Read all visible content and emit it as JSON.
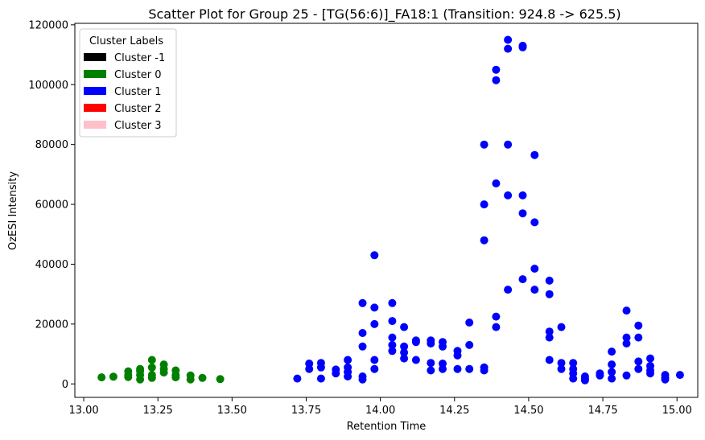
{
  "chart_data": {
    "type": "scatter",
    "title": "Scatter Plot for Group 25 - [TG(56:6)]_FA18:1 (Transition: 924.8 -> 625.5)",
    "xlabel": "Retention Time",
    "ylabel": "OzESI Intensity",
    "xlim": [
      12.97,
      15.07
    ],
    "ylim": [
      -4500,
      120500
    ],
    "xticks": [
      13.0,
      13.25,
      13.5,
      13.75,
      14.0,
      14.25,
      14.5,
      14.75,
      15.0
    ],
    "xtick_labels": [
      "13.00",
      "13.25",
      "13.50",
      "13.75",
      "14.00",
      "14.25",
      "14.50",
      "14.75",
      "15.00"
    ],
    "yticks": [
      0,
      20000,
      40000,
      60000,
      80000,
      100000,
      120000
    ],
    "ytick_labels": [
      "0",
      "20000",
      "40000",
      "60000",
      "80000",
      "100000",
      "120000"
    ],
    "grid": false,
    "legend": {
      "title": "Cluster Labels",
      "placement": "top-left",
      "entries": [
        {
          "label": "Cluster -1",
          "color": "#000000"
        },
        {
          "label": "Cluster 0",
          "color": "#008000"
        },
        {
          "label": "Cluster 1",
          "color": "#0000ff"
        },
        {
          "label": "Cluster 2",
          "color": "#ff0000"
        },
        {
          "label": "Cluster 3",
          "color": "#ffc0cb"
        }
      ]
    },
    "series": [
      {
        "name": "Cluster 0",
        "color": "#008000",
        "x": [
          13.06,
          13.1,
          13.15,
          13.15,
          13.15,
          13.19,
          13.19,
          13.19,
          13.19,
          13.23,
          13.23,
          13.23,
          13.23,
          13.27,
          13.27,
          13.27,
          13.31,
          13.31,
          13.31,
          13.36,
          13.36,
          13.4,
          13.46
        ],
        "y": [
          2200,
          2400,
          4200,
          3000,
          2300,
          5000,
          4300,
          3000,
          1500,
          8000,
          5500,
          3000,
          2000,
          6500,
          5000,
          3800,
          4500,
          3000,
          2200,
          2800,
          1500,
          2000,
          1600
        ]
      },
      {
        "name": "Cluster 1",
        "color": "#0000ff",
        "x": [
          13.72,
          13.76,
          13.76,
          13.8,
          13.8,
          13.8,
          13.85,
          13.85,
          13.89,
          13.89,
          13.89,
          13.89,
          13.94,
          13.94,
          13.94,
          13.94,
          13.94,
          13.98,
          13.98,
          13.98,
          13.98,
          13.98,
          14.04,
          14.04,
          14.04,
          14.04,
          14.04,
          14.08,
          14.08,
          14.08,
          14.08,
          14.12,
          14.12,
          14.12,
          14.17,
          14.17,
          14.17,
          14.17,
          14.21,
          14.21,
          14.21,
          14.21,
          14.26,
          14.26,
          14.26,
          14.3,
          14.3,
          14.3,
          14.35,
          14.35,
          14.35,
          14.35,
          14.35,
          14.39,
          14.39,
          14.39,
          14.39,
          14.39,
          14.43,
          14.43,
          14.43,
          14.43,
          14.43,
          14.48,
          14.48,
          14.48,
          14.48,
          14.48,
          14.52,
          14.52,
          14.52,
          14.52,
          14.57,
          14.57,
          14.57,
          14.57,
          14.57,
          14.61,
          14.61,
          14.61,
          14.65,
          14.65,
          14.65,
          14.65,
          14.69,
          14.69,
          14.69,
          14.74,
          14.74,
          14.78,
          14.78,
          14.78,
          14.78,
          14.83,
          14.83,
          14.83,
          14.83,
          14.87,
          14.87,
          14.87,
          14.87,
          14.91,
          14.91,
          14.91,
          14.91,
          14.96,
          14.96,
          14.96,
          15.01
        ],
        "y": [
          1800,
          6800,
          5000,
          7000,
          5500,
          1800,
          4800,
          3500,
          8000,
          5500,
          4000,
          2500,
          27000,
          17000,
          12500,
          2500,
          1500,
          43000,
          25500,
          20000,
          8000,
          5000,
          27000,
          21000,
          15500,
          13000,
          11000,
          19000,
          12500,
          10500,
          8500,
          14500,
          14000,
          8000,
          14500,
          13500,
          7000,
          4500,
          14000,
          12500,
          6800,
          5000,
          11000,
          9500,
          5000,
          20500,
          13000,
          5000,
          80000,
          60000,
          48000,
          5500,
          4500,
          105000,
          101500,
          67000,
          22500,
          19000,
          115000,
          112000,
          80000,
          63000,
          31500,
          113000,
          112500,
          63000,
          57000,
          35000,
          76500,
          54000,
          38500,
          31500,
          34500,
          30000,
          17500,
          15500,
          8000,
          19000,
          7000,
          5000,
          7000,
          5000,
          3500,
          1800,
          2500,
          1800,
          1200,
          3500,
          2800,
          10800,
          6500,
          4000,
          1800,
          24500,
          15500,
          13500,
          2800,
          19500,
          15500,
          7500,
          5000,
          8500,
          6000,
          4500,
          3500,
          3000,
          2000,
          1500,
          3000
        ]
      }
    ]
  }
}
